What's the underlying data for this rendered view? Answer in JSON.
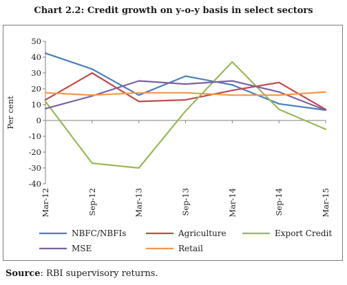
{
  "title": "Chart 2.2: Credit growth on y-o-y basis in select sectors",
  "source": {
    "label": "Source",
    "text": ": RBI supervisory returns."
  },
  "chart_data": {
    "type": "line",
    "title": "Chart 2.2: Credit growth on y-o-y basis in select sectors",
    "xlabel": "",
    "ylabel": "Per cent",
    "ylim": [
      -40,
      50
    ],
    "yticks": [
      -40,
      -30,
      -20,
      -10,
      0,
      10,
      20,
      30,
      40,
      50
    ],
    "grid": false,
    "legend_position": "bottom",
    "x": [
      "Mar-12",
      "Sep-12",
      "Mar-13",
      "Sep-13",
      "Mar-14",
      "Sep-14",
      "Mar-15"
    ],
    "series": [
      {
        "name": "NBFC/NBFIs",
        "color": "#4a7ebb",
        "values": [
          42.5,
          32.5,
          16,
          28,
          22.5,
          10.5,
          6.5
        ]
      },
      {
        "name": "Agriculture",
        "color": "#be4b48",
        "values": [
          13,
          30,
          12,
          13,
          19,
          24,
          7
        ]
      },
      {
        "name": "Export Credit",
        "color": "#98b954",
        "values": [
          12,
          -27,
          -30,
          6,
          37,
          7,
          -5.5
        ]
      },
      {
        "name": "MSE",
        "color": "#7d60a0",
        "values": [
          7.5,
          15.5,
          25,
          23,
          25,
          18,
          6.5
        ]
      },
      {
        "name": "Retail",
        "color": "#f79646",
        "values": [
          17.5,
          16,
          17.5,
          17.5,
          16,
          16,
          18
        ]
      }
    ]
  }
}
